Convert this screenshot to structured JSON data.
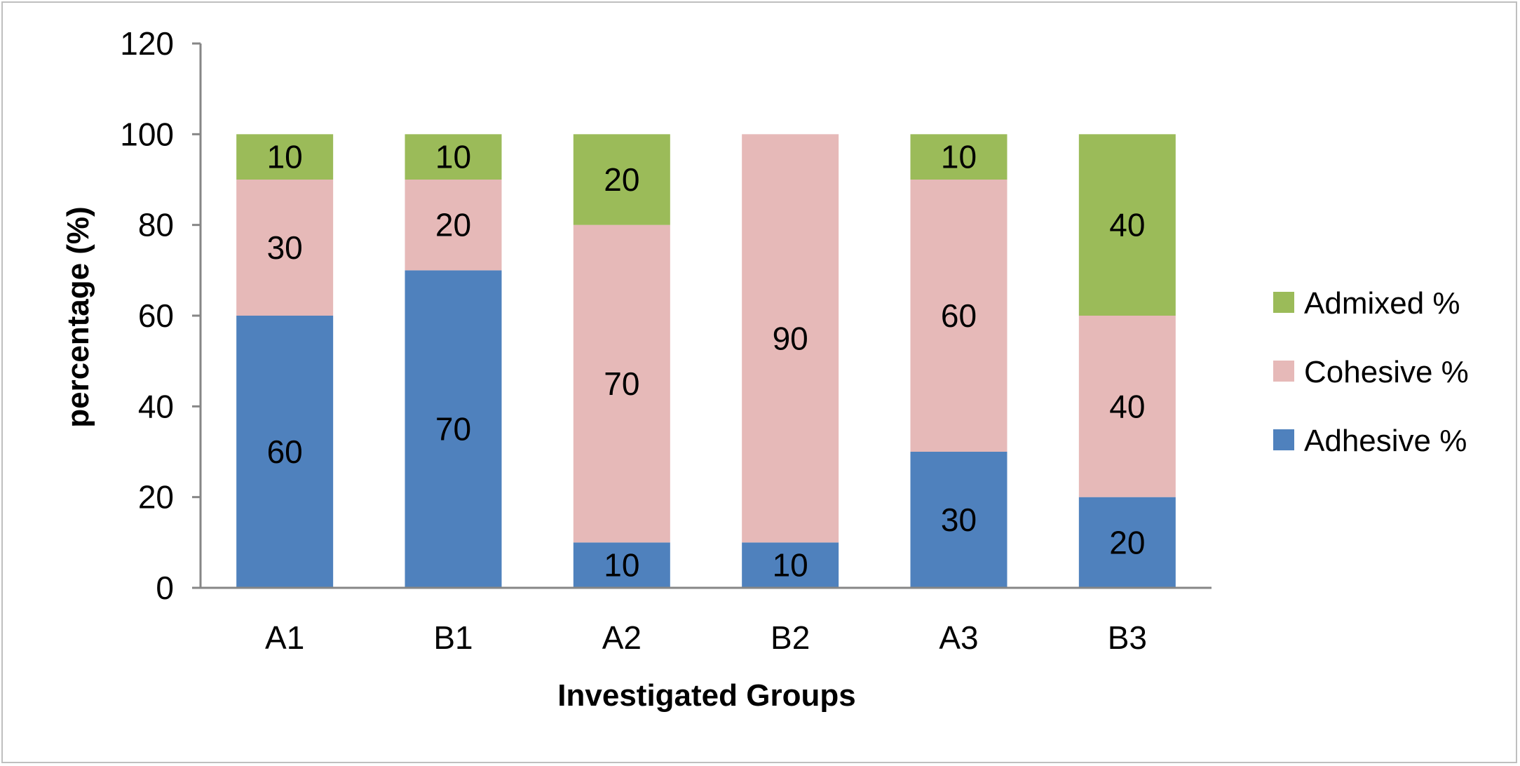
{
  "chart_data": {
    "type": "bar",
    "stacked": true,
    "categories": [
      "A1",
      "B1",
      "A2",
      "B2",
      "A3",
      "B3"
    ],
    "series": [
      {
        "name": "Adhesive %",
        "color": "#4f81bd",
        "values": [
          60,
          70,
          10,
          10,
          30,
          20
        ]
      },
      {
        "name": "Cohesive %",
        "color": "#e6b9b8",
        "values": [
          30,
          20,
          70,
          90,
          60,
          40
        ]
      },
      {
        "name": "Admixed %",
        "color": "#9bbb59",
        "values": [
          10,
          10,
          20,
          0,
          10,
          40
        ]
      }
    ],
    "xlabel": "Investigated Groups",
    "ylabel": "percentage (%)",
    "ylim": [
      0,
      120
    ],
    "yticks": [
      0,
      20,
      40,
      60,
      80,
      100,
      120
    ],
    "grid": false,
    "legend_position": "right"
  }
}
